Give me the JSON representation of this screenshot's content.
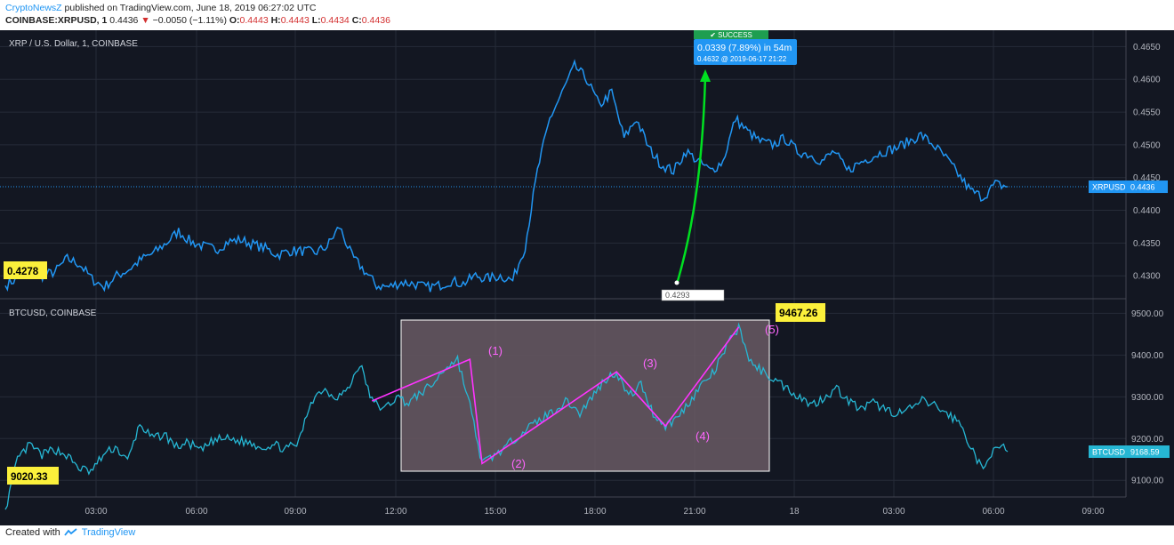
{
  "header": {
    "author": "CryptoNewsZ",
    "published": " published on TradingView.com, June 18, 2019 06:27:02 UTC",
    "symbol": "COINBASE:XRPUSD, 1",
    "last": "0.4436",
    "change": "−0.0050 (−1.11%)",
    "o_label": "O:",
    "o": "0.4443",
    "h_label": "H:",
    "h": "0.4443",
    "l_label": "L:",
    "l": "0.4434",
    "c_label": "C:",
    "c": "0.4436"
  },
  "footer": {
    "created_with": "Created with",
    "brand": "TradingView"
  },
  "colors": {
    "background": "#131722",
    "grid": "#262b38",
    "xrp_line": "#2196f3",
    "btc_line": "#26b7d4",
    "up_arrow": "#00e021",
    "pattern_line": "#ff33ff",
    "highlight_box": "#6a5a64",
    "marker_yellow": "#fbf03b"
  },
  "chart_data": [
    {
      "type": "line",
      "title": "XRP / U.S. Dollar, 1, COINBASE",
      "ylim": [
        0.4265,
        0.4675
      ],
      "y_ticks": [
        "0.4300",
        "0.4350",
        "0.4400",
        "0.4450",
        "0.4500",
        "0.4550",
        "0.4600",
        "0.4650"
      ],
      "x_ticks": [
        "03:00",
        "06:00",
        "09:00",
        "12:00",
        "15:00",
        "18:00",
        "21:00",
        "18",
        "03:00",
        "06:00",
        "09:00"
      ],
      "series": [
        {
          "name": "XRPUSD",
          "points": [
            [
              0,
              0.4285
            ],
            [
              1,
              0.4297
            ],
            [
              2,
              0.4308
            ],
            [
              3,
              0.43
            ],
            [
              4,
              0.4306
            ],
            [
              5,
              0.4326
            ],
            [
              6,
              0.4318
            ],
            [
              7,
              0.4295
            ],
            [
              8,
              0.4283
            ],
            [
              9,
              0.43
            ],
            [
              10,
              0.431
            ],
            [
              11,
              0.4325
            ],
            [
              12,
              0.4335
            ],
            [
              13,
              0.435
            ],
            [
              14,
              0.4368
            ],
            [
              15,
              0.4352
            ],
            [
              16,
              0.4345
            ],
            [
              17,
              0.434
            ],
            [
              18,
              0.4352
            ],
            [
              19,
              0.4355
            ],
            [
              20,
              0.4348
            ],
            [
              21,
              0.4342
            ],
            [
              22,
              0.4332
            ],
            [
              23,
              0.4338
            ],
            [
              24,
              0.4338
            ],
            [
              25,
              0.4335
            ],
            [
              26,
              0.4345
            ],
            [
              27,
              0.4375
            ],
            [
              28,
              0.433
            ],
            [
              29,
              0.4308
            ],
            [
              30,
              0.4285
            ],
            [
              31,
              0.4283
            ],
            [
              32,
              0.429
            ],
            [
              33,
              0.4288
            ],
            [
              34,
              0.4282
            ],
            [
              35,
              0.4285
            ],
            [
              36,
              0.4292
            ],
            [
              37,
              0.4288
            ],
            [
              38,
              0.43
            ],
            [
              39,
              0.4296
            ],
            [
              40,
              0.43
            ],
            [
              41,
              0.4293
            ],
            [
              42,
              0.4345
            ],
            [
              43,
              0.446
            ],
            [
              44,
              0.454
            ],
            [
              45,
              0.458
            ],
            [
              46,
              0.462
            ],
            [
              47,
              0.46
            ],
            [
              48,
              0.456
            ],
            [
              49,
              0.458
            ],
            [
              50,
              0.451
            ],
            [
              51,
              0.454
            ],
            [
              52,
              0.4495
            ],
            [
              53,
              0.447
            ],
            [
              54,
              0.446
            ],
            [
              55,
              0.449
            ],
            [
              56,
              0.4475
            ],
            [
              57,
              0.446
            ],
            [
              58,
              0.4475
            ],
            [
              59,
              0.454
            ],
            [
              60,
              0.452
            ],
            [
              61,
              0.4505
            ],
            [
              62,
              0.45
            ],
            [
              63,
              0.451
            ],
            [
              64,
              0.449
            ],
            [
              65,
              0.4485
            ],
            [
              66,
              0.4475
            ],
            [
              67,
              0.449
            ],
            [
              68,
              0.446
            ],
            [
              69,
              0.4472
            ],
            [
              70,
              0.4482
            ],
            [
              71,
              0.449
            ],
            [
              72,
              0.4495
            ],
            [
              73,
              0.4505
            ],
            [
              74,
              0.4515
            ],
            [
              75,
              0.45
            ],
            [
              76,
              0.448
            ],
            [
              77,
              0.4455
            ],
            [
              78,
              0.443
            ],
            [
              79,
              0.442
            ],
            [
              80,
              0.444
            ],
            [
              81,
              0.4436
            ]
          ]
        }
      ],
      "annotations": {
        "last_value_tag": "XRPUSD",
        "last_value": "0.4436",
        "left_price_label": "0.4278",
        "low_label": "0.4293",
        "success_badge": "✔ SUCCESS",
        "measure_line1": "0.0339 (7.89%)  in 54m",
        "measure_line2": "0.4632  @ 2019-06-17  21:22"
      }
    },
    {
      "type": "line",
      "title": "BTCUSD, COINBASE",
      "ylim": [
        9060,
        9535
      ],
      "y_ticks": [
        "9100.00",
        "9200.00",
        "9300.00",
        "9400.00",
        "9500.00"
      ],
      "series": [
        {
          "name": "BTCUSD",
          "points": [
            [
              0,
              9030
            ],
            [
              1,
              9150
            ],
            [
              2,
              9185
            ],
            [
              3,
              9160
            ],
            [
              4,
              9175
            ],
            [
              5,
              9160
            ],
            [
              6,
              9130
            ],
            [
              7,
              9120
            ],
            [
              8,
              9160
            ],
            [
              9,
              9180
            ],
            [
              10,
              9145
            ],
            [
              11,
              9235
            ],
            [
              12,
              9200
            ],
            [
              13,
              9210
            ],
            [
              14,
              9180
            ],
            [
              15,
              9190
            ],
            [
              16,
              9170
            ],
            [
              17,
              9195
            ],
            [
              18,
              9200
            ],
            [
              19,
              9195
            ],
            [
              20,
              9190
            ],
            [
              21,
              9180
            ],
            [
              22,
              9185
            ],
            [
              23,
              9175
            ],
            [
              24,
              9190
            ],
            [
              25,
              9290
            ],
            [
              26,
              9320
            ],
            [
              27,
              9300
            ],
            [
              28,
              9315
            ],
            [
              29,
              9380
            ],
            [
              30,
              9290
            ],
            [
              31,
              9270
            ],
            [
              32,
              9300
            ],
            [
              33,
              9285
            ],
            [
              34,
              9310
            ],
            [
              35,
              9330
            ],
            [
              36,
              9370
            ],
            [
              37,
              9390
            ],
            [
              38,
              9280
            ],
            [
              39,
              9140
            ],
            [
              40,
              9160
            ],
            [
              41,
              9180
            ],
            [
              42,
              9210
            ],
            [
              43,
              9230
            ],
            [
              44,
              9250
            ],
            [
              45,
              9270
            ],
            [
              46,
              9290
            ],
            [
              47,
              9260
            ],
            [
              48,
              9300
            ],
            [
              49,
              9340
            ],
            [
              50,
              9360
            ],
            [
              51,
              9300
            ],
            [
              52,
              9330
            ],
            [
              53,
              9260
            ],
            [
              54,
              9230
            ],
            [
              55,
              9250
            ],
            [
              56,
              9290
            ],
            [
              57,
              9330
            ],
            [
              58,
              9360
            ],
            [
              59,
              9420
            ],
            [
              60,
              9467
            ],
            [
              61,
              9380
            ],
            [
              62,
              9360
            ],
            [
              63,
              9340
            ],
            [
              64,
              9320
            ],
            [
              65,
              9300
            ],
            [
              66,
              9280
            ],
            [
              67,
              9300
            ],
            [
              68,
              9320
            ],
            [
              69,
              9290
            ],
            [
              70,
              9270
            ],
            [
              71,
              9285
            ],
            [
              72,
              9270
            ],
            [
              73,
              9260
            ],
            [
              74,
              9270
            ],
            [
              75,
              9290
            ],
            [
              76,
              9280
            ],
            [
              77,
              9260
            ],
            [
              78,
              9240
            ],
            [
              79,
              9180
            ],
            [
              80,
              9120
            ],
            [
              81,
              9190
            ],
            [
              82,
              9168.59
            ]
          ]
        }
      ],
      "annotations": {
        "last_value_tag": "BTCUSD",
        "last_value": "9168.59",
        "start_label": "9020.33",
        "high_label": "9467.26",
        "wave_labels": [
          "(1)",
          "(2)",
          "(3)",
          "(4)",
          "(5)"
        ]
      }
    }
  ]
}
